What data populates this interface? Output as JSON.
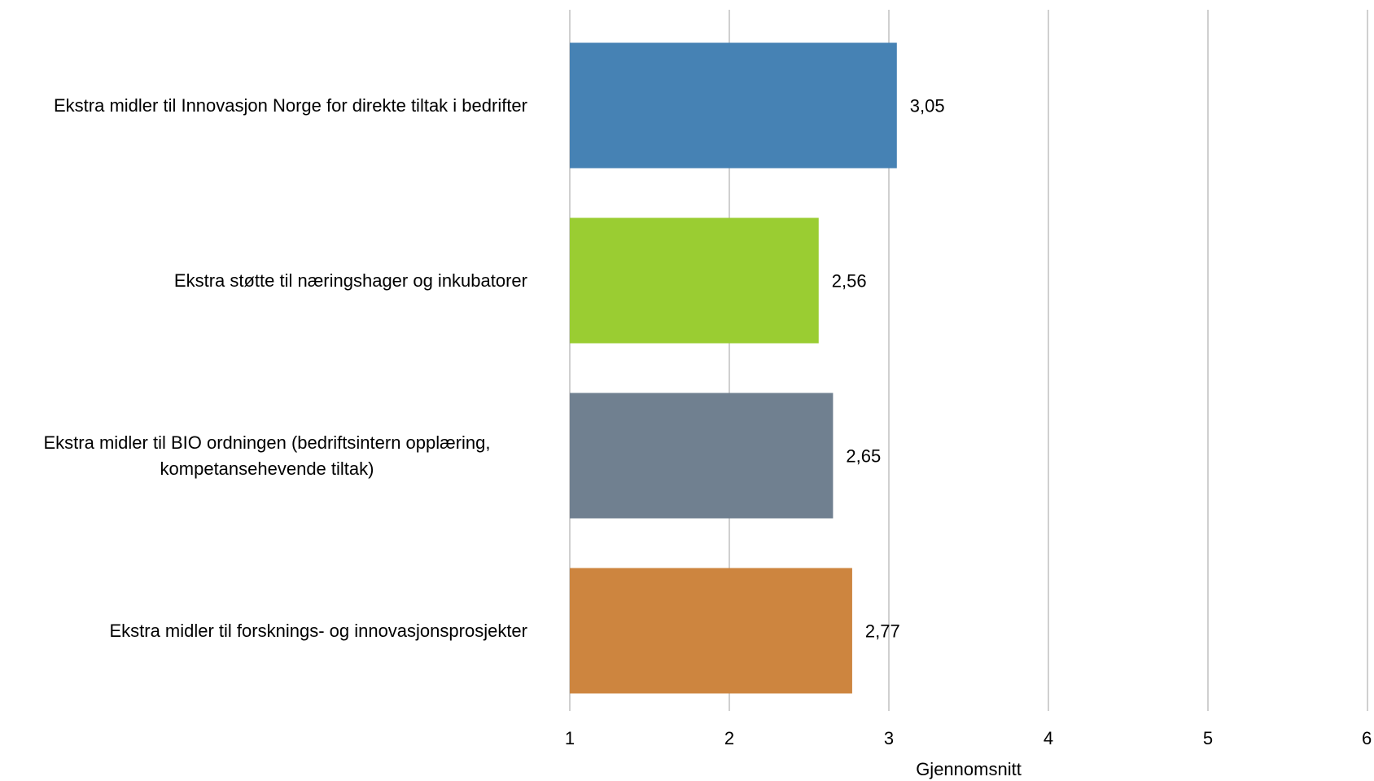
{
  "chart_data": {
    "type": "bar",
    "orientation": "horizontal",
    "categories": [
      "Ekstra midler til Innovasjon Norge for direkte tiltak i bedrifter",
      "Ekstra støtte til næringshager og inkubatorer",
      "Ekstra midler til BIO ordningen (bedriftsintern opplæring, kompetansehevende tiltak)",
      "Ekstra midler til forsknings- og innovasjonsprosjekter"
    ],
    "category_lines": [
      [
        "Ekstra midler til Innovasjon Norge for direkte tiltak i bedrifter"
      ],
      [
        "Ekstra støtte til næringshager og inkubatorer"
      ],
      [
        "Ekstra midler til BIO ordningen (bedriftsintern opplæring,",
        "kompetansehevende tiltak)"
      ],
      [
        "Ekstra midler til forsknings- og innovasjonsprosjekter"
      ]
    ],
    "values": [
      3.05,
      2.56,
      2.65,
      2.77
    ],
    "data_labels": [
      "3,05",
      "2,56",
      "2,65",
      "2,77"
    ],
    "colors": [
      "#4682B4",
      "#9ACD32",
      "#708090",
      "#CD853F"
    ],
    "xlabel": "Gjennomsnitt",
    "ylabel": "",
    "xlim": [
      1,
      6
    ],
    "ticks": [
      "1",
      "2",
      "3",
      "4",
      "5",
      "6"
    ],
    "grid": "vertical",
    "grid_color": "#d0d0d0",
    "legend": "none"
  }
}
